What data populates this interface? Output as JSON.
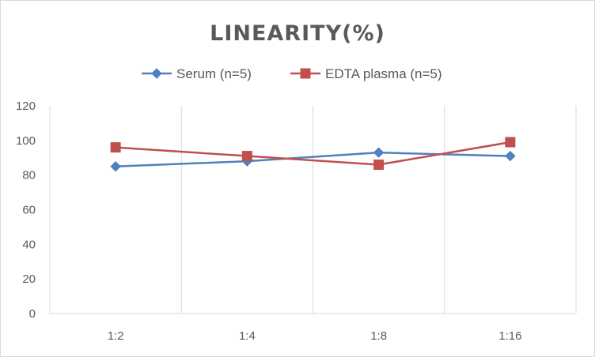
{
  "chart_data": {
    "type": "line",
    "title": "LINEARITY(%)",
    "categories": [
      "1:2",
      "1:4",
      "1:8",
      "1:16"
    ],
    "series": [
      {
        "name": "Serum (n=5)",
        "values": [
          85,
          88,
          93,
          91
        ],
        "color": "#4f81bd",
        "marker": "diamond"
      },
      {
        "name": "EDTA plasma (n=5)",
        "values": [
          96,
          91,
          86,
          99
        ],
        "color": "#c0504d",
        "marker": "square"
      }
    ],
    "ylim": [
      0,
      120
    ],
    "yticks": [
      "0",
      "20",
      "40",
      "60",
      "80",
      "100",
      "120"
    ],
    "xlabel": "",
    "ylabel": "",
    "grid": "vertical",
    "legend": "top"
  }
}
